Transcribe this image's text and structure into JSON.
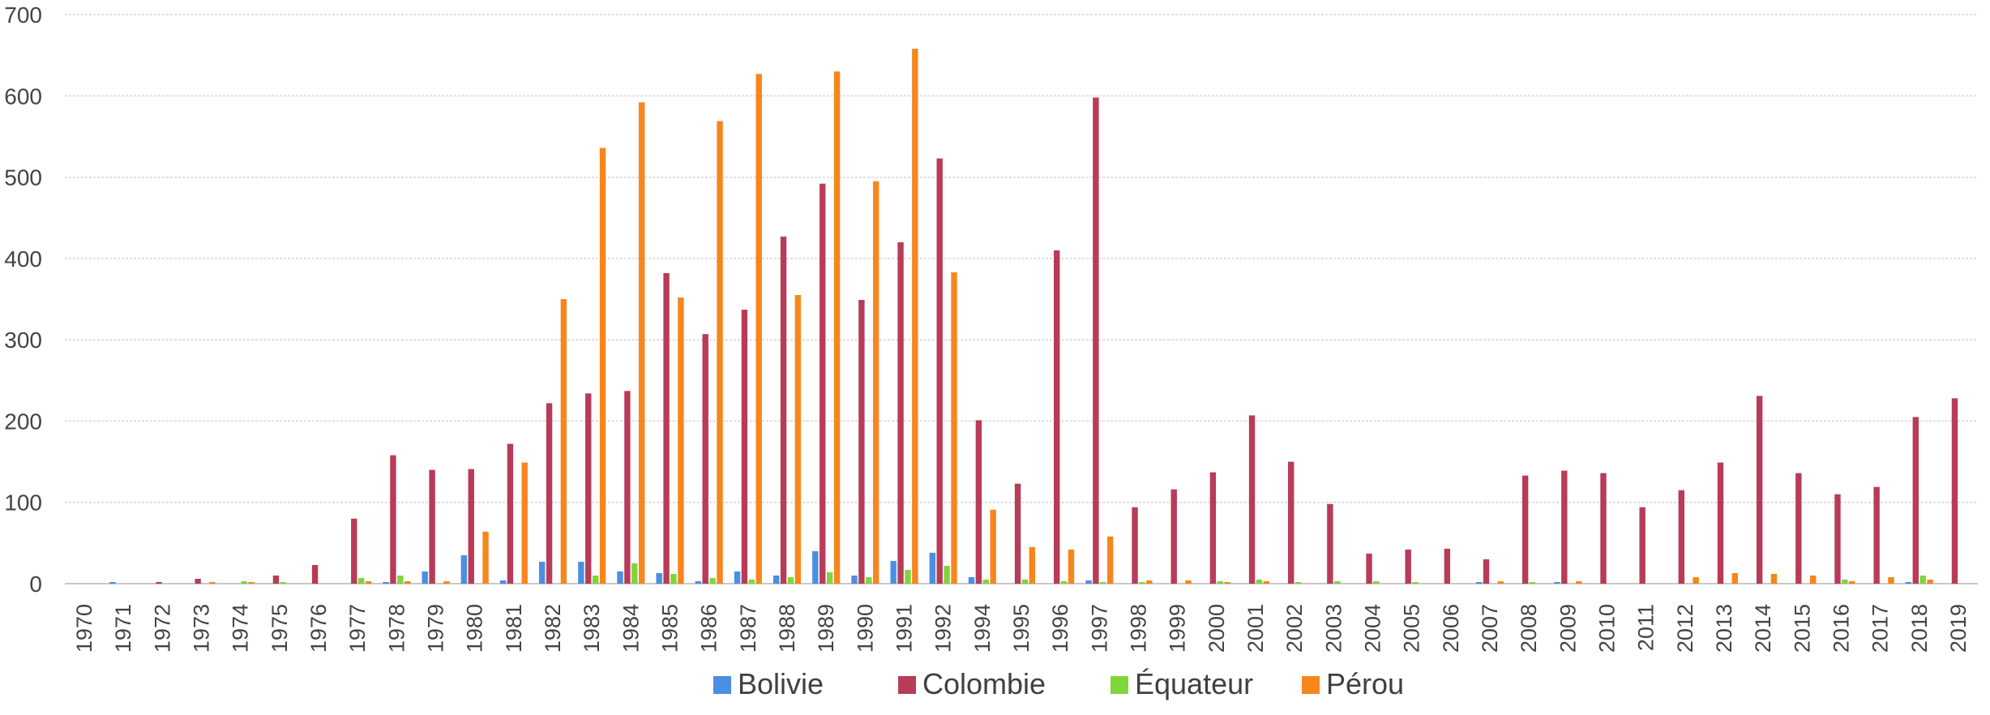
{
  "chart_data": {
    "type": "bar",
    "title": "",
    "xlabel": "",
    "ylabel": "",
    "ylim": [
      0,
      700
    ],
    "yticks": [
      0,
      100,
      200,
      300,
      400,
      500,
      600,
      700
    ],
    "grid": true,
    "legend_position": "bottom-center",
    "categories": [
      "1970",
      "1971",
      "1972",
      "1973",
      "1974",
      "1975",
      "1976",
      "1977",
      "1978",
      "1979",
      "1980",
      "1981",
      "1982",
      "1983",
      "1984",
      "1985",
      "1986",
      "1987",
      "1988",
      "1989",
      "1990",
      "1991",
      "1992",
      "1994",
      "1995",
      "1996",
      "1997",
      "1998",
      "1999",
      "2000",
      "2001",
      "2002",
      "2003",
      "2004",
      "2005",
      "2006",
      "2007",
      "2008",
      "2009",
      "2010",
      "2011",
      "2012",
      "2013",
      "2014",
      "2015",
      "2016",
      "2017",
      "2018",
      "2019"
    ],
    "series": [
      {
        "name": "Bolivie",
        "color": "#4a8fe3",
        "values": [
          0,
          2,
          0,
          0,
          0,
          0,
          0,
          0,
          2,
          15,
          35,
          4,
          27,
          27,
          15,
          13,
          3,
          15,
          10,
          40,
          10,
          28,
          38,
          8,
          0,
          0,
          4,
          0,
          0,
          0,
          0,
          0,
          0,
          0,
          0,
          0,
          2,
          0,
          2,
          0,
          0,
          0,
          0,
          0,
          0,
          0,
          0,
          2,
          0
        ]
      },
      {
        "name": "Colombie",
        "color": "#b83c57",
        "values": [
          0,
          0,
          2,
          6,
          0,
          10,
          23,
          80,
          158,
          140,
          141,
          172,
          222,
          234,
          237,
          382,
          307,
          337,
          427,
          492,
          349,
          420,
          523,
          201,
          123,
          410,
          598,
          94,
          116,
          137,
          207,
          150,
          98,
          37,
          42,
          43,
          30,
          133,
          139,
          136,
          94,
          115,
          149,
          231,
          136,
          110,
          119,
          205,
          228
        ]
      },
      {
        "name": "Équateur",
        "color": "#7ed63a",
        "values": [
          0,
          0,
          0,
          0,
          3,
          2,
          0,
          7,
          10,
          0,
          0,
          0,
          0,
          10,
          25,
          12,
          7,
          5,
          8,
          14,
          8,
          17,
          22,
          5,
          5,
          3,
          2,
          2,
          0,
          3,
          5,
          2,
          3,
          3,
          2,
          0,
          0,
          2,
          0,
          0,
          0,
          0,
          0,
          0,
          0,
          5,
          0,
          10,
          0
        ]
      },
      {
        "name": "Pérou",
        "color": "#f7861c",
        "values": [
          0,
          0,
          0,
          2,
          2,
          0,
          0,
          3,
          3,
          3,
          64,
          149,
          350,
          536,
          592,
          352,
          569,
          627,
          355,
          630,
          495,
          658,
          383,
          91,
          45,
          42,
          58,
          4,
          4,
          2,
          3,
          0,
          0,
          0,
          0,
          0,
          3,
          0,
          3,
          0,
          0,
          8,
          13,
          12,
          10,
          3,
          8,
          5,
          0
        ]
      }
    ]
  }
}
